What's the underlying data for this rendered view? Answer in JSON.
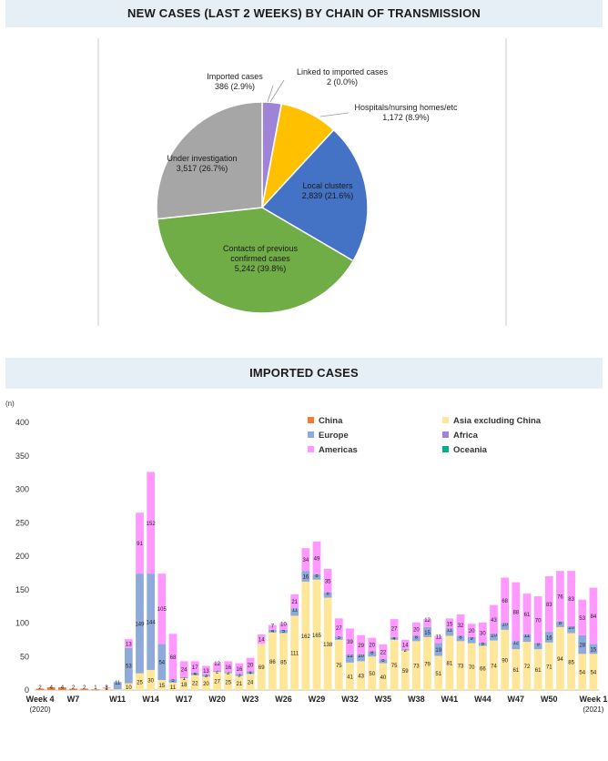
{
  "headers": {
    "pie_title": "NEW CASES (LAST 2 WEEKS) BY CHAIN OF TRANSMISSION",
    "bar_title": "IMPORTED CASES"
  },
  "colors": {
    "header_bg": "#e6eef6",
    "china": "#ed7d31",
    "asia": "#ffe699",
    "europe": "#8eaadb",
    "africa": "#9e83d6",
    "americas": "#ff99ff",
    "oceania": "#00b085",
    "pie_imported": "#9e83d6",
    "pie_linked": "#1f4e9a",
    "pie_hospitals": "#ffc000",
    "pie_local": "#4472c4",
    "pie_contacts": "#70ad47",
    "pie_investigation": "#a6a6a6"
  },
  "chart_data": [
    {
      "type": "pie",
      "title": "NEW CASES (LAST 2 WEEKS) BY CHAIN OF TRANSMISSION",
      "slices": [
        {
          "label": "Imported cases",
          "value": 386,
          "value_text": "386",
          "percent_text": "(2.9%)"
        },
        {
          "label": "Linked to imported cases",
          "value": 2,
          "value_text": "2",
          "percent_text": "(0.0%)"
        },
        {
          "label": "Hospitals/nursing homes/etc",
          "value": 1172,
          "value_text": "1,172",
          "percent_text": "(8.9%)"
        },
        {
          "label": "Local clusters",
          "value": 2839,
          "value_text": "2,839",
          "percent_text": "(21.6%)"
        },
        {
          "label": "Contacts of previous confirmed cases",
          "value": 5242,
          "value_text": "5,242",
          "percent_text": "(39.8%)"
        },
        {
          "label": "Under investigation",
          "value": 3517,
          "value_text": "3,517",
          "percent_text": "(26.7%)"
        }
      ]
    },
    {
      "type": "bar",
      "stacked": true,
      "title": "IMPORTED CASES",
      "ylabel": "(n)",
      "ylim": [
        0,
        400
      ],
      "yticks": [
        0,
        50,
        100,
        150,
        200,
        250,
        300,
        350,
        400
      ],
      "legend_position": "top-right",
      "categories": [
        "Week 4",
        "W5",
        "W6",
        "W7",
        "W8",
        "W9",
        "W10",
        "W11",
        "W12",
        "W13",
        "W14",
        "W15",
        "W16",
        "W17",
        "W18",
        "W19",
        "W20",
        "W21",
        "W22",
        "W23",
        "W24",
        "W25",
        "W26",
        "W27",
        "W28",
        "W29",
        "W30",
        "W31",
        "W32",
        "W33",
        "W34",
        "W35",
        "W36",
        "W37",
        "W38",
        "W39",
        "W40",
        "W41",
        "W42",
        "W43",
        "W44",
        "W45",
        "W46",
        "W47",
        "W48",
        "W49",
        "W50",
        "W51",
        "W52",
        "W53",
        "Week 1"
      ],
      "xtick_labels": [
        {
          "index": 0,
          "lines": [
            "Week 4",
            "(2020)"
          ]
        },
        {
          "index": 3,
          "lines": [
            "W7"
          ]
        },
        {
          "index": 7,
          "lines": [
            "W11"
          ]
        },
        {
          "index": 10,
          "lines": [
            "W14"
          ]
        },
        {
          "index": 13,
          "lines": [
            "W17"
          ]
        },
        {
          "index": 16,
          "lines": [
            "W20"
          ]
        },
        {
          "index": 19,
          "lines": [
            "W23"
          ]
        },
        {
          "index": 22,
          "lines": [
            "W26"
          ]
        },
        {
          "index": 25,
          "lines": [
            "W29"
          ]
        },
        {
          "index": 28,
          "lines": [
            "W32"
          ]
        },
        {
          "index": 31,
          "lines": [
            "W35"
          ]
        },
        {
          "index": 34,
          "lines": [
            "W38"
          ]
        },
        {
          "index": 37,
          "lines": [
            "W41"
          ]
        },
        {
          "index": 40,
          "lines": [
            "W44"
          ]
        },
        {
          "index": 43,
          "lines": [
            "W47"
          ]
        },
        {
          "index": 46,
          "lines": [
            "W50"
          ]
        },
        {
          "index": 50,
          "lines": [
            "Week 1",
            "(2021)"
          ]
        }
      ],
      "series": [
        {
          "name": "China",
          "key": "china",
          "values": [
            2,
            4,
            4,
            2,
            2,
            1,
            0,
            0,
            0,
            0,
            0,
            0,
            0,
            0,
            0,
            0,
            0,
            0,
            0,
            0,
            0,
            0,
            0,
            0,
            0,
            0,
            0,
            0,
            0,
            0,
            0,
            0,
            0,
            0,
            0,
            0,
            0,
            0,
            0,
            0,
            0,
            0,
            0,
            0,
            0,
            0,
            0,
            0,
            0,
            0,
            0
          ]
        },
        {
          "name": "Asia excluding China",
          "key": "asia",
          "values": [
            0,
            0,
            0,
            0,
            0,
            0,
            3,
            1,
            10,
            25,
            30,
            15,
            11,
            18,
            22,
            20,
            27,
            25,
            21,
            24,
            69,
            86,
            85,
            111,
            162,
            165,
            138,
            75,
            41,
            43,
            50,
            40,
            75,
            59,
            73,
            79,
            51,
            81,
            73,
            70,
            66,
            74,
            90,
            61,
            72,
            61,
            71,
            94,
            85,
            54,
            54
          ]
        },
        {
          "name": "Europe",
          "key": "europe",
          "values": [
            0,
            0,
            0,
            0,
            0,
            0,
            0,
            11,
            53,
            149,
            144,
            54,
            5,
            1,
            4,
            3,
            2,
            2,
            3,
            4,
            0,
            4,
            5,
            11,
            16,
            8,
            8,
            5,
            12,
            10,
            8,
            6,
            4,
            2,
            8,
            15,
            19,
            11,
            8,
            9,
            5,
            10,
            10,
            12,
            11,
            9,
            16,
            8,
            10,
            28,
            15
          ]
        },
        {
          "name": "Africa",
          "key": "africa",
          "values": [
            0,
            0,
            0,
            0,
            0,
            0,
            0,
            0,
            0,
            0,
            0,
            0,
            0,
            0,
            0,
            0,
            0,
            0,
            0,
            0,
            0,
            0,
            0,
            0,
            0,
            0,
            0,
            0,
            0,
            0,
            0,
            0,
            0,
            0,
            0,
            0,
            0,
            0,
            0,
            0,
            0,
            0,
            0,
            0,
            0,
            0,
            0,
            0,
            0,
            0,
            0
          ]
        },
        {
          "name": "Americas",
          "key": "americas",
          "values": [
            0,
            0,
            0,
            0,
            0,
            0,
            1,
            0,
            13,
            91,
            152,
            105,
            68,
            24,
            17,
            13,
            12,
            16,
            16,
            20,
            14,
            7,
            10,
            21,
            34,
            49,
            35,
            27,
            39,
            29,
            20,
            22,
            27,
            14,
            20,
            12,
            11,
            15,
            32,
            20,
            30,
            43,
            68,
            88,
            61,
            70,
            83,
            76,
            83,
            53,
            84
          ]
        },
        {
          "name": "Oceania",
          "key": "oceania",
          "values": [
            0,
            0,
            0,
            0,
            0,
            0,
            0,
            0,
            0,
            0,
            0,
            0,
            0,
            0,
            0,
            0,
            0,
            0,
            0,
            0,
            0,
            0,
            0,
            0,
            0,
            0,
            0,
            0,
            0,
            0,
            0,
            0,
            0,
            0,
            0,
            0,
            0,
            0,
            0,
            0,
            0,
            0,
            0,
            0,
            0,
            0,
            0,
            0,
            0,
            0,
            0
          ]
        }
      ]
    }
  ]
}
